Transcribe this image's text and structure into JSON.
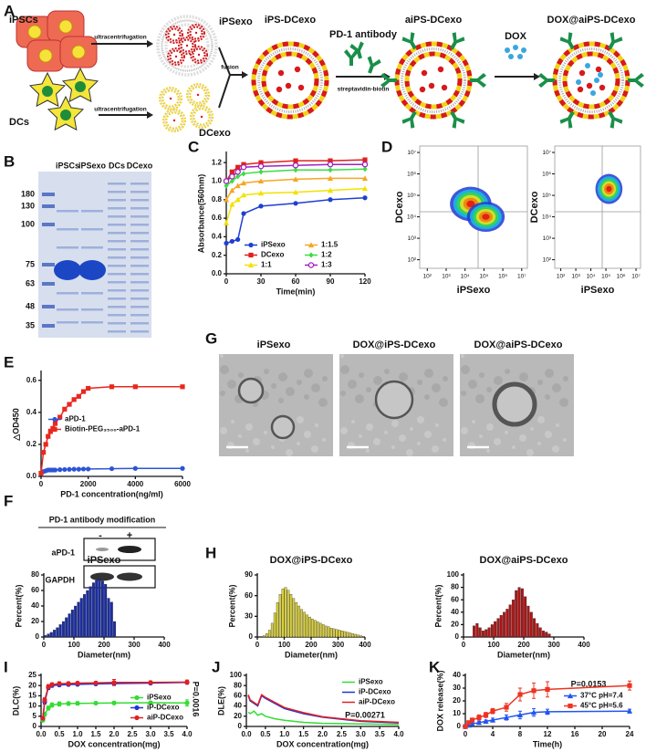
{
  "panel_labels": [
    "A",
    "B",
    "C",
    "D",
    "E",
    "F",
    "G",
    "H",
    "I",
    "J",
    "K"
  ],
  "panel_a": {
    "cells_1": "iPSCs",
    "cells_2": "DCs",
    "step_1": "ultracentrifugation",
    "step_2": "ultracentrifugation",
    "exo_1": "iPSexo",
    "exo_2": "DCexo",
    "step_fusion": "fusion",
    "fused": "iPS-DCexo",
    "antibody": "PD-1 antibody",
    "linker": "streptavidin-biotin",
    "modified": "aiPS-DCexo",
    "drug": "DOX",
    "loaded": "DOX@aiPS-DCexo"
  },
  "panel_b": {
    "lanes": [
      "iPSCs",
      "iPSexo",
      "DCs",
      "DCexo"
    ],
    "markers": [
      180,
      130,
      100,
      75,
      63,
      48,
      35
    ]
  },
  "panel_d": {
    "plots": [
      {
        "xlabel": "iPSexo",
        "ylabel": "DCexo"
      },
      {
        "xlabel": "iPSexo",
        "ylabel": "DCexo"
      }
    ],
    "lim": [
      1.6,
      7.3
    ],
    "ticks": [
      {
        "value": 2,
        "label": "10²"
      },
      {
        "value": 3,
        "label": "10³"
      },
      {
        "value": 4,
        "label": "10⁴"
      },
      {
        "value": 5,
        "label": "10⁵"
      },
      {
        "value": 6,
        "label": "10⁶"
      },
      {
        "value": 7,
        "label": "10⁷"
      }
    ]
  },
  "panel_f": {
    "title": "PD-1 antibody modification",
    "groups": [
      "-",
      "+"
    ],
    "rows": [
      "aPD-1",
      "GAPDH"
    ]
  },
  "panel_g": {
    "titles": [
      "iPSexo",
      "DOX@iPS-DCexo",
      "DOX@aiPS-DCexo"
    ]
  },
  "chart_data": [
    {
      "type": "line",
      "ylabel": "Absorbance(560nm)",
      "xlabel": "Time(min)",
      "x": [
        0,
        5,
        10,
        15,
        30,
        60,
        90,
        120
      ],
      "xlim": [
        0,
        120
      ],
      "xticks": [
        0,
        30,
        60,
        90,
        120
      ],
      "ylim": [
        0,
        1.3
      ],
      "yticks": [
        {
          "value": 0,
          "label": "0.0"
        },
        0.2,
        0.4,
        0.6,
        0.8,
        {
          "value": 1,
          "label": "1.0"
        },
        1.2
      ],
      "legend": "lower right",
      "series": [
        {
          "name": "iPSexo",
          "color": "#1f3fd1",
          "marker": "circle",
          "values": [
            0.33,
            0.35,
            0.37,
            0.65,
            0.73,
            0.76,
            0.8,
            0.82
          ]
        },
        {
          "name": "DCexo",
          "color": "#e0201b",
          "marker": "square",
          "values": [
            1.0,
            1.1,
            1.15,
            1.18,
            1.2,
            1.22,
            1.22,
            1.23
          ]
        },
        {
          "name": "1:1",
          "color": "#f2e200",
          "marker": "triangle",
          "values": [
            0.55,
            0.75,
            0.8,
            0.85,
            0.87,
            0.88,
            0.9,
            0.92
          ]
        },
        {
          "name": "1:1.5",
          "color": "#f5a623",
          "marker": "triangle",
          "values": [
            0.8,
            0.9,
            0.95,
            0.98,
            1.0,
            1.02,
            1.03,
            1.03
          ]
        },
        {
          "name": "1:2",
          "color": "#3ddc44",
          "marker": "diamond",
          "values": [
            0.95,
            1.0,
            1.05,
            1.08,
            1.1,
            1.12,
            1.12,
            1.13
          ]
        },
        {
          "name": "1:3",
          "color": "#a020c0",
          "marker": "open-circle",
          "values": [
            1.0,
            1.05,
            1.1,
            1.15,
            1.16,
            1.17,
            1.18,
            1.18
          ]
        }
      ]
    },
    {
      "type": "line",
      "ylabel": "△OD450",
      "xlabel": "PD-1 concentration(ng/ml)",
      "x": [
        0,
        100,
        200,
        300,
        400,
        500,
        600,
        800,
        1000,
        1200,
        1400,
        1600,
        1800,
        2000,
        3000,
        4000,
        6000
      ],
      "xlim": [
        0,
        6000
      ],
      "xticks": [
        0,
        2000,
        4000,
        6000
      ],
      "ylim": [
        0,
        0.65
      ],
      "yticks": [
        {
          "value": 0,
          "label": "0.0"
        },
        0.2,
        0.4,
        0.6
      ],
      "legend": "center left",
      "series": [
        {
          "name": "aPD-1",
          "color": "#2b55d6",
          "marker": "circle",
          "values": [
            0.02,
            0.03,
            0.035,
            0.04,
            0.04,
            0.04,
            0.04,
            0.042,
            0.043,
            0.044,
            0.045,
            0.045,
            0.046,
            0.046,
            0.048,
            0.05,
            0.05
          ]
        },
        {
          "name": "Biotin-PEG₃₅₀₀-aPD-1",
          "color": "#e8281e",
          "marker": "square",
          "values": [
            0.02,
            0.15,
            0.2,
            0.25,
            0.28,
            0.3,
            0.33,
            0.37,
            0.42,
            0.45,
            0.48,
            0.5,
            0.53,
            0.55,
            0.56,
            0.56,
            0.56
          ]
        }
      ]
    },
    {
      "type": "histogram",
      "title": "iPSexo",
      "ylabel": "Percent(%)",
      "xlabel": "Diameter(nm)",
      "color": "#1a2ea8",
      "bins": [
        0,
        10,
        20,
        30,
        40,
        50,
        60,
        70,
        80,
        90,
        100,
        110,
        120,
        130,
        140,
        150,
        160,
        170,
        180,
        190,
        200,
        210,
        220,
        230,
        240
      ],
      "values": [
        2,
        4,
        6,
        9,
        12,
        16,
        20,
        25,
        30,
        35,
        40,
        45,
        50,
        55,
        60,
        65,
        70,
        73,
        75,
        72,
        68,
        50,
        45,
        20
      ],
      "xlim": [
        0,
        400
      ],
      "xticks": [
        0,
        100,
        200,
        300,
        400
      ],
      "ylim": [
        0,
        80
      ],
      "yticks": [
        0,
        20,
        40,
        60,
        80
      ]
    },
    {
      "type": "histogram",
      "title": "DOX@iPS-DCexo",
      "ylabel": "Percent(%)",
      "xlabel": "Diameter(nm)",
      "color": "#d9cf3a",
      "bins": [
        20,
        30,
        40,
        50,
        60,
        70,
        80,
        90,
        100,
        110,
        120,
        130,
        140,
        150,
        160,
        170,
        180,
        190,
        200,
        210,
        220,
        230,
        240,
        250,
        260,
        270,
        280,
        290,
        300,
        310,
        320,
        330,
        340,
        350,
        360,
        370,
        380,
        390,
        400
      ],
      "values": [
        2,
        5,
        10,
        20,
        35,
        50,
        62,
        70,
        72,
        68,
        62,
        56,
        50,
        45,
        40,
        36,
        32,
        29,
        26,
        24,
        22,
        20,
        18,
        16,
        15,
        13,
        12,
        11,
        10,
        9,
        8,
        7,
        6,
        5,
        4,
        3,
        2,
        1
      ],
      "xlim": [
        0,
        400
      ],
      "xticks": [
        0,
        100,
        200,
        300,
        400
      ],
      "ylim": [
        0,
        90
      ],
      "yticks": [
        0,
        30,
        60,
        90
      ]
    },
    {
      "type": "histogram",
      "title": "DOX@aiPS-DCexo",
      "ylabel": "Percent(%)",
      "xlabel": "Diameter(nm)",
      "color": "#b01515",
      "bins": [
        30,
        40,
        50,
        60,
        70,
        80,
        90,
        100,
        110,
        120,
        130,
        140,
        150,
        160,
        170,
        180,
        190,
        200,
        210,
        220,
        230,
        240,
        250,
        260,
        270,
        280,
        290
      ],
      "values": [
        18,
        22,
        15,
        10,
        12,
        15,
        20,
        25,
        30,
        35,
        40,
        45,
        52,
        60,
        75,
        80,
        78,
        65,
        50,
        40,
        30,
        22,
        15,
        10,
        8,
        5
      ],
      "xlim": [
        0,
        400
      ],
      "xticks": [
        0,
        100,
        200,
        300,
        400
      ],
      "ylim": [
        0,
        100
      ],
      "yticks": [
        0,
        20,
        40,
        60,
        80,
        100
      ]
    },
    {
      "type": "line",
      "ylabel": "DLC(%)",
      "xlabel": "DOX concentration(mg)",
      "annotation": "P=0.0016",
      "x": [
        0.05,
        0.1,
        0.2,
        0.3,
        0.5,
        0.75,
        1,
        1.5,
        2,
        3,
        4
      ],
      "xlim": [
        0,
        4
      ],
      "xticks": [
        {
          "value": 0,
          "label": "0.0"
        },
        0.5,
        {
          "value": 1,
          "label": "1.0"
        },
        1.5,
        {
          "value": 2,
          "label": "2.0"
        },
        2.5,
        {
          "value": 3,
          "label": "3.0"
        },
        3.5,
        {
          "value": 4,
          "label": "4.0"
        }
      ],
      "ylim": [
        0,
        25
      ],
      "yticks": [
        0,
        5,
        10,
        15,
        20,
        25
      ],
      "legend": "lower right",
      "series": [
        {
          "name": "iPSexo",
          "color": "#33dd33",
          "marker": "circle",
          "values": [
            3,
            6,
            9,
            10.5,
            11,
            11.2,
            11.3,
            11.4,
            11.5,
            11.6,
            11.5
          ],
          "errors": [
            0.5,
            1,
            1,
            1,
            1,
            0.8,
            0.8,
            0.7,
            0.7,
            0.7,
            1.5
          ]
        },
        {
          "name": "iP-DCexo",
          "color": "#2233dd",
          "marker": "circle",
          "values": [
            4,
            12,
            19,
            20,
            20.3,
            20.5,
            20.6,
            20.8,
            21,
            21.2,
            21.5
          ],
          "errors": [
            0.5,
            1,
            1,
            0.8,
            0.7,
            0.7,
            0.6,
            0.6,
            0.6,
            0.7,
            0.7
          ]
        },
        {
          "name": "aiP-DCexo",
          "color": "#e02020",
          "marker": "circle",
          "values": [
            4,
            13,
            19.5,
            20.5,
            21,
            21,
            21.2,
            21.3,
            21.5,
            21.5,
            21.7
          ],
          "errors": [
            0.5,
            1,
            1,
            0.8,
            0.8,
            0.8,
            0.7,
            0.7,
            1.5,
            0.7,
            1
          ]
        }
      ]
    },
    {
      "type": "line",
      "ylabel": "DLE(%)",
      "xlabel": "DOX concentration(mg)",
      "annotation": "P=0.00271",
      "x": [
        0.05,
        0.1,
        0.2,
        0.3,
        0.4,
        0.5,
        0.75,
        1,
        1.5,
        2,
        3,
        4
      ],
      "xlim": [
        0,
        4
      ],
      "xticks": [
        {
          "value": 0,
          "label": "0.0"
        },
        0.5,
        {
          "value": 1,
          "label": "1.0"
        },
        1.5,
        {
          "value": 2,
          "label": "2.0"
        },
        2.5,
        {
          "value": 3,
          "label": "3.0"
        },
        3.5,
        {
          "value": 4,
          "label": "4.0"
        }
      ],
      "ylim": [
        0,
        100
      ],
      "yticks": [
        0,
        20,
        40,
        60,
        80,
        100
      ],
      "legend": "upper right",
      "series": [
        {
          "name": "iPSexo",
          "color": "#33dd33",
          "marker": "none",
          "values": [
            28,
            25,
            30,
            22,
            25,
            20,
            15,
            12,
            8,
            6,
            5,
            4
          ]
        },
        {
          "name": "iP-DCexo",
          "color": "#2233dd",
          "marker": "none",
          "values": [
            60,
            50,
            45,
            40,
            60,
            55,
            45,
            35,
            25,
            18,
            10,
            7
          ]
        },
        {
          "name": "aiP-DCexo",
          "color": "#e02020",
          "marker": "none",
          "values": [
            62,
            52,
            47,
            42,
            62,
            57,
            47,
            37,
            27,
            19,
            11,
            8
          ]
        }
      ]
    },
    {
      "type": "line",
      "ylabel": "DOX release(%)",
      "xlabel": "Time(h)",
      "annotation": "P=0.0153",
      "x": [
        0,
        0.5,
        1,
        2,
        3,
        4,
        6,
        8,
        10,
        12,
        24
      ],
      "xlim": [
        0,
        24
      ],
      "xticks": [
        0,
        4,
        8,
        12,
        16,
        20,
        24
      ],
      "ylim": [
        0,
        40
      ],
      "yticks": [
        0,
        10,
        20,
        30,
        40
      ],
      "legend": "center right",
      "series": [
        {
          "name": "37°C pH=7.4",
          "color": "#2255ee",
          "marker": "triangle",
          "values": [
            0,
            1,
            2,
            3,
            4,
            5,
            7,
            9,
            11,
            11.5,
            12
          ],
          "errors": [
            0,
            0.5,
            1,
            1,
            1,
            1.5,
            2,
            3,
            3,
            2,
            1.5
          ]
        },
        {
          "name": "45°C pH=5.6",
          "color": "#ee3322",
          "marker": "square",
          "values": [
            0,
            3,
            5,
            7,
            9,
            12,
            15,
            25,
            28,
            29,
            32
          ],
          "errors": [
            0,
            1,
            1.5,
            2,
            2,
            2,
            3,
            5,
            6,
            6,
            3.5
          ]
        }
      ]
    }
  ]
}
